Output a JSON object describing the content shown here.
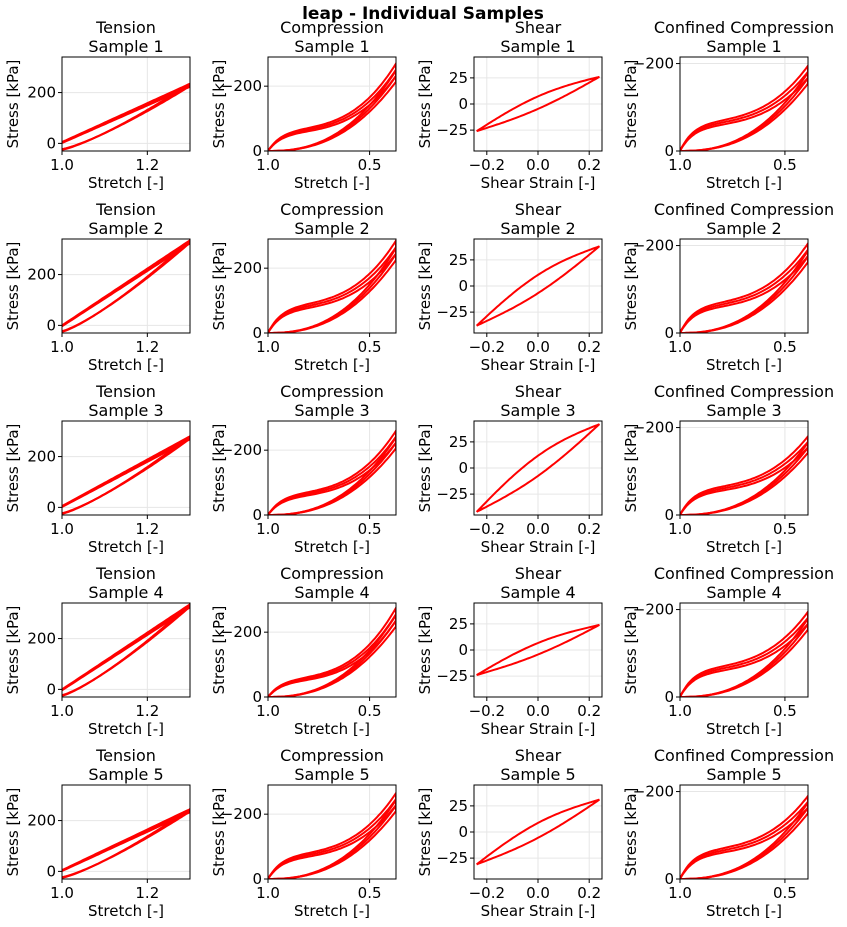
{
  "figure": {
    "title": "leap - Individual Samples",
    "line_color": "#ff0000",
    "axis_color": "#000000",
    "grid_color": "#e6e6e6"
  },
  "chart_data": [
    {
      "type": "line",
      "test": "tension",
      "sample": 1,
      "title": [
        "Tension",
        "Sample 1"
      ],
      "xlabel": "Stretch [-]",
      "ylabel": "Stress [kPa]",
      "xlim": [
        1.0,
        1.3
      ],
      "ylim": [
        -30,
        340
      ],
      "xticks": [
        1.0,
        1.2
      ],
      "xtick_labels": [
        "1.0",
        "1.2"
      ],
      "yticks": [
        0,
        200
      ],
      "ytick_labels": [
        "0",
        "200"
      ],
      "load_peak": 235,
      "unload_start": 5,
      "y0": -25,
      "invert_y": false,
      "grid": true
    },
    {
      "type": "line",
      "test": "compression",
      "sample": 1,
      "title": [
        "Compression",
        "Sample 1"
      ],
      "xlabel": "Stretch [-]",
      "ylabel": "Stress [kPa]",
      "xlim": [
        1.0,
        0.37
      ],
      "ylim": [
        0,
        -290
      ],
      "xticks": [
        1.0,
        0.5
      ],
      "xtick_labels": [
        "1.0",
        "0.5"
      ],
      "yticks": [
        0,
        -200
      ],
      "ytick_labels": [
        "0",
        "−200"
      ],
      "load_peak": -270,
      "knee": -70,
      "invert_y": true,
      "grid": true
    },
    {
      "type": "line",
      "test": "shear",
      "sample": 1,
      "title": [
        "Shear",
        "Sample 1"
      ],
      "xlabel": "Shear Strain [-]",
      "ylabel": "Stress [kPa]",
      "xlim": [
        -0.25,
        0.25
      ],
      "ylim": [
        -45,
        45
      ],
      "xticks": [
        -0.2,
        0.0,
        0.2
      ],
      "xtick_labels": [
        "−0.2",
        "0.0",
        "0.2"
      ],
      "yticks": [
        -25,
        0,
        25
      ],
      "ytick_labels": [
        "−25",
        "0",
        "25"
      ],
      "amplitude": 26,
      "invert_y": false,
      "grid": true
    },
    {
      "type": "line",
      "test": "confined_compression",
      "sample": 1,
      "title": [
        "Confined Compression",
        "Sample 1"
      ],
      "xlabel": "Stretch [-]",
      "ylabel": "Stress [kPa]",
      "xlim": [
        1.0,
        0.39
      ],
      "ylim": [
        0,
        -215
      ],
      "xticks": [
        1.0,
        0.5
      ],
      "xtick_labels": [
        "1.0",
        "0.5"
      ],
      "yticks": [
        0,
        -200
      ],
      "ytick_labels": [
        "0",
        "−200"
      ],
      "load_peak": -195,
      "knee": -70,
      "invert_y": true,
      "grid": true
    },
    {
      "type": "line",
      "test": "tension",
      "sample": 2,
      "title": [
        "Tension",
        "Sample 2"
      ],
      "xlabel": "Stretch [-]",
      "ylabel": "Stress [kPa]",
      "xlim": [
        1.0,
        1.3
      ],
      "ylim": [
        -30,
        340
      ],
      "xticks": [
        1.0,
        1.2
      ],
      "xtick_labels": [
        "1.0",
        "1.2"
      ],
      "yticks": [
        0,
        200
      ],
      "ytick_labels": [
        "0",
        "200"
      ],
      "load_peak": 335,
      "unload_start": 0,
      "y0": -25,
      "invert_y": false,
      "grid": true
    },
    {
      "type": "line",
      "test": "compression",
      "sample": 2,
      "title": [
        "Compression",
        "Sample 2"
      ],
      "xlabel": "Stretch [-]",
      "ylabel": "Stress [kPa]",
      "xlim": [
        1.0,
        0.37
      ],
      "ylim": [
        0,
        -290
      ],
      "xticks": [
        1.0,
        0.5
      ],
      "xtick_labels": [
        "1.0",
        "0.5"
      ],
      "yticks": [
        0,
        -200
      ],
      "ytick_labels": [
        "0",
        "−200"
      ],
      "load_peak": -285,
      "knee": -90,
      "invert_y": true,
      "grid": true
    },
    {
      "type": "line",
      "test": "shear",
      "sample": 2,
      "title": [
        "Shear",
        "Sample 2"
      ],
      "xlabel": "Shear Strain [-]",
      "ylabel": "Stress [kPa]",
      "xlim": [
        -0.25,
        0.25
      ],
      "ylim": [
        -45,
        45
      ],
      "xticks": [
        -0.2,
        0.0,
        0.2
      ],
      "xtick_labels": [
        "−0.2",
        "0.0",
        "0.2"
      ],
      "yticks": [
        -25,
        0,
        25
      ],
      "ytick_labels": [
        "−25",
        "0",
        "25"
      ],
      "amplitude": 38,
      "invert_y": false,
      "grid": true
    },
    {
      "type": "line",
      "test": "confined_compression",
      "sample": 2,
      "title": [
        "Confined Compression",
        "Sample 2"
      ],
      "xlabel": "Stretch [-]",
      "ylabel": "Stress [kPa]",
      "xlim": [
        1.0,
        0.39
      ],
      "ylim": [
        0,
        -215
      ],
      "xticks": [
        1.0,
        0.5
      ],
      "xtick_labels": [
        "1.0",
        "0.5"
      ],
      "yticks": [
        0,
        -200
      ],
      "ytick_labels": [
        "0",
        "−200"
      ],
      "load_peak": -205,
      "knee": -70,
      "invert_y": true,
      "grid": true
    },
    {
      "type": "line",
      "test": "tension",
      "sample": 3,
      "title": [
        "Tension",
        "Sample 3"
      ],
      "xlabel": "Stretch [-]",
      "ylabel": "Stress [kPa]",
      "xlim": [
        1.0,
        1.3
      ],
      "ylim": [
        -30,
        340
      ],
      "xticks": [
        1.0,
        1.2
      ],
      "xtick_labels": [
        "1.0",
        "1.2"
      ],
      "yticks": [
        0,
        200
      ],
      "ytick_labels": [
        "0",
        "200"
      ],
      "load_peak": 280,
      "unload_start": 5,
      "y0": -25,
      "invert_y": false,
      "grid": true
    },
    {
      "type": "line",
      "test": "compression",
      "sample": 3,
      "title": [
        "Compression",
        "Sample 3"
      ],
      "xlabel": "Stretch [-]",
      "ylabel": "Stress [kPa]",
      "xlim": [
        1.0,
        0.37
      ],
      "ylim": [
        0,
        -290
      ],
      "xticks": [
        1.0,
        0.5
      ],
      "xtick_labels": [
        "1.0",
        "0.5"
      ],
      "yticks": [
        0,
        -200
      ],
      "ytick_labels": [
        "0",
        "−200"
      ],
      "load_peak": -260,
      "knee": -70,
      "invert_y": true,
      "grid": true
    },
    {
      "type": "line",
      "test": "shear",
      "sample": 3,
      "title": [
        "Shear",
        "Sample 3"
      ],
      "xlabel": "Shear Strain [-]",
      "ylabel": "Stress [kPa]",
      "xlim": [
        -0.25,
        0.25
      ],
      "ylim": [
        -45,
        45
      ],
      "xticks": [
        -0.2,
        0.0,
        0.2
      ],
      "xtick_labels": [
        "−0.2",
        "0.0",
        "0.2"
      ],
      "yticks": [
        -25,
        0,
        25
      ],
      "ytick_labels": [
        "−25",
        "0",
        "25"
      ],
      "amplitude": 42,
      "invert_y": false,
      "grid": true
    },
    {
      "type": "line",
      "test": "confined_compression",
      "sample": 3,
      "title": [
        "Confined Compression",
        "Sample 3"
      ],
      "xlabel": "Stretch [-]",
      "ylabel": "Stress [kPa]",
      "xlim": [
        1.0,
        0.39
      ],
      "ylim": [
        0,
        -215
      ],
      "xticks": [
        1.0,
        0.5
      ],
      "xtick_labels": [
        "1.0",
        "0.5"
      ],
      "yticks": [
        0,
        -200
      ],
      "ytick_labels": [
        "0",
        "−200"
      ],
      "load_peak": -180,
      "knee": -65,
      "invert_y": true,
      "grid": true
    },
    {
      "type": "line",
      "test": "tension",
      "sample": 4,
      "title": [
        "Tension",
        "Sample 4"
      ],
      "xlabel": "Stretch [-]",
      "ylabel": "Stress [kPa]",
      "xlim": [
        1.0,
        1.3
      ],
      "ylim": [
        -30,
        340
      ],
      "xticks": [
        1.0,
        1.2
      ],
      "xtick_labels": [
        "1.0",
        "1.2"
      ],
      "yticks": [
        0,
        200
      ],
      "ytick_labels": [
        "0",
        "200"
      ],
      "load_peak": 335,
      "unload_start": 0,
      "y0": -25,
      "invert_y": false,
      "grid": true
    },
    {
      "type": "line",
      "test": "compression",
      "sample": 4,
      "title": [
        "Compression",
        "Sample 4"
      ],
      "xlabel": "Stretch [-]",
      "ylabel": "Stress [kPa]",
      "xlim": [
        1.0,
        0.37
      ],
      "ylim": [
        0,
        -290
      ],
      "xticks": [
        1.0,
        0.5
      ],
      "xtick_labels": [
        "1.0",
        "0.5"
      ],
      "yticks": [
        0,
        -200
      ],
      "ytick_labels": [
        "0",
        "−200"
      ],
      "load_peak": -275,
      "knee": -60,
      "invert_y": true,
      "grid": true
    },
    {
      "type": "line",
      "test": "shear",
      "sample": 4,
      "title": [
        "Shear",
        "Sample 4"
      ],
      "xlabel": "Shear Strain [-]",
      "ylabel": "Stress [kPa]",
      "xlim": [
        -0.25,
        0.25
      ],
      "ylim": [
        -45,
        45
      ],
      "xticks": [
        -0.2,
        0.0,
        0.2
      ],
      "xtick_labels": [
        "−0.2",
        "0.0",
        "0.2"
      ],
      "yticks": [
        -25,
        0,
        25
      ],
      "ytick_labels": [
        "−25",
        "0",
        "25"
      ],
      "amplitude": 24,
      "invert_y": false,
      "grid": true
    },
    {
      "type": "line",
      "test": "confined_compression",
      "sample": 4,
      "title": [
        "Confined Compression",
        "Sample 4"
      ],
      "xlabel": "Stretch [-]",
      "ylabel": "Stress [kPa]",
      "xlim": [
        1.0,
        0.39
      ],
      "ylim": [
        0,
        -215
      ],
      "xticks": [
        1.0,
        0.5
      ],
      "xtick_labels": [
        "1.0",
        "0.5"
      ],
      "yticks": [
        0,
        -200
      ],
      "ytick_labels": [
        "0",
        "−200"
      ],
      "load_peak": -195,
      "knee": -70,
      "invert_y": true,
      "grid": true
    },
    {
      "type": "line",
      "test": "tension",
      "sample": 5,
      "title": [
        "Tension",
        "Sample 5"
      ],
      "xlabel": "Stretch [-]",
      "ylabel": "Stress [kPa]",
      "xlim": [
        1.0,
        1.3
      ],
      "ylim": [
        -30,
        340
      ],
      "xticks": [
        1.0,
        1.2
      ],
      "xtick_labels": [
        "1.0",
        "1.2"
      ],
      "yticks": [
        0,
        200
      ],
      "ytick_labels": [
        "0",
        "200"
      ],
      "load_peak": 245,
      "unload_start": 5,
      "y0": -25,
      "invert_y": false,
      "grid": true
    },
    {
      "type": "line",
      "test": "compression",
      "sample": 5,
      "title": [
        "Compression",
        "Sample 5"
      ],
      "xlabel": "Stretch [-]",
      "ylabel": "Stress [kPa]",
      "xlim": [
        1.0,
        0.37
      ],
      "ylim": [
        0,
        -290
      ],
      "xticks": [
        1.0,
        0.5
      ],
      "xtick_labels": [
        "1.0",
        "0.5"
      ],
      "yticks": [
        0,
        -200
      ],
      "ytick_labels": [
        "0",
        "−200"
      ],
      "load_peak": -265,
      "knee": -80,
      "invert_y": true,
      "grid": true
    },
    {
      "type": "line",
      "test": "shear",
      "sample": 5,
      "title": [
        "Shear",
        "Sample 5"
      ],
      "xlabel": "Shear Strain [-]",
      "ylabel": "Stress [kPa]",
      "xlim": [
        -0.25,
        0.25
      ],
      "ylim": [
        -45,
        45
      ],
      "xticks": [
        -0.2,
        0.0,
        0.2
      ],
      "xtick_labels": [
        "−0.2",
        "0.0",
        "0.2"
      ],
      "yticks": [
        -25,
        0,
        25
      ],
      "ytick_labels": [
        "−25",
        "0",
        "25"
      ],
      "amplitude": 31,
      "invert_y": false,
      "grid": true
    },
    {
      "type": "line",
      "test": "confined_compression",
      "sample": 5,
      "title": [
        "Confined Compression",
        "Sample 5"
      ],
      "xlabel": "Stretch [-]",
      "ylabel": "Stress [kPa]",
      "xlim": [
        1.0,
        0.39
      ],
      "ylim": [
        0,
        -215
      ],
      "xticks": [
        1.0,
        0.5
      ],
      "xtick_labels": [
        "1.0",
        "0.5"
      ],
      "yticks": [
        0,
        -200
      ],
      "ytick_labels": [
        "0",
        "−200"
      ],
      "load_peak": -190,
      "knee": -70,
      "invert_y": true,
      "grid": true
    }
  ]
}
